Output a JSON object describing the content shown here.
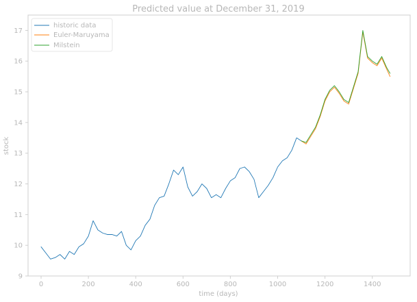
{
  "chart_data": {
    "type": "line",
    "title": "Predicted value at December 31, 2019",
    "xlabel": "time (days)",
    "ylabel": "stock",
    "xlim": [
      -55,
      1560
    ],
    "ylim": [
      9.0,
      17.5
    ],
    "x_ticks": [
      0,
      200,
      400,
      600,
      800,
      1000,
      1200,
      1400
    ],
    "y_ticks": [
      9,
      10,
      11,
      12,
      13,
      14,
      15,
      16,
      17
    ],
    "grid": false,
    "legend_position": "top-left",
    "colors": {
      "historic": "#1f77b4",
      "euler": "#ff7f0e",
      "milstein": "#2ca02c",
      "frame": "#cfcfcf",
      "text": "#b7b7b7"
    },
    "series": [
      {
        "name": "historic data",
        "x": [
          0,
          20,
          40,
          60,
          80,
          100,
          120,
          140,
          160,
          180,
          200,
          220,
          240,
          260,
          280,
          300,
          320,
          340,
          360,
          380,
          400,
          420,
          440,
          460,
          480,
          500,
          520,
          540,
          560,
          580,
          600,
          620,
          640,
          660,
          680,
          700,
          720,
          740,
          760,
          780,
          800,
          820,
          840,
          860,
          880,
          900,
          920,
          940,
          960,
          980,
          1000,
          1020,
          1040,
          1060,
          1080,
          1100
        ],
        "y": [
          9.95,
          9.75,
          9.55,
          9.6,
          9.7,
          9.55,
          9.8,
          9.7,
          9.95,
          10.05,
          10.3,
          10.8,
          10.5,
          10.4,
          10.35,
          10.35,
          10.3,
          10.45,
          10.0,
          9.85,
          10.15,
          10.3,
          10.65,
          10.85,
          11.3,
          11.55,
          11.6,
          12.0,
          12.45,
          12.3,
          12.55,
          11.9,
          11.6,
          11.75,
          12.0,
          11.85,
          11.55,
          11.65,
          11.55,
          11.85,
          12.1,
          12.2,
          12.5,
          12.55,
          12.4,
          12.15,
          11.55,
          11.75,
          11.95,
          12.2,
          12.55,
          12.75,
          12.85,
          13.1,
          13.5,
          13.4
        ]
      },
      {
        "name": "Euler-Maruyama",
        "x": [
          1100,
          1120,
          1140,
          1160,
          1180,
          1200,
          1220,
          1240,
          1260,
          1280,
          1300,
          1320,
          1340,
          1360,
          1380,
          1400,
          1420,
          1440,
          1460,
          1475
        ],
        "y": [
          13.4,
          13.3,
          13.55,
          13.8,
          14.2,
          14.7,
          15.0,
          15.15,
          14.95,
          14.7,
          14.6,
          15.1,
          15.6,
          16.95,
          16.1,
          15.95,
          15.85,
          16.1,
          15.75,
          15.5
        ]
      },
      {
        "name": "Milstein",
        "x": [
          1100,
          1120,
          1140,
          1160,
          1180,
          1200,
          1220,
          1240,
          1260,
          1280,
          1300,
          1320,
          1340,
          1360,
          1380,
          1400,
          1420,
          1440,
          1460,
          1475
        ],
        "y": [
          13.4,
          13.35,
          13.6,
          13.85,
          14.25,
          14.75,
          15.05,
          15.2,
          15.0,
          14.75,
          14.65,
          15.15,
          15.65,
          17.0,
          16.15,
          16.0,
          15.9,
          16.15,
          15.8,
          15.6
        ]
      }
    ]
  }
}
